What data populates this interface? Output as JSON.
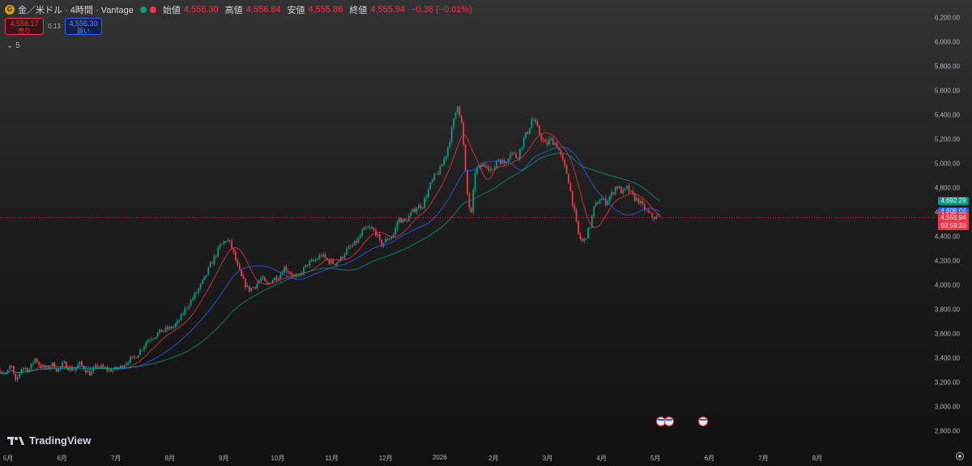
{
  "header": {
    "title": "金／米ドル · 4時間 · Vantage",
    "logo_letter": "G",
    "status_dots": [
      "#089981",
      "#f23645"
    ],
    "ohlc": [
      {
        "key": "始値",
        "value": "4,556.30"
      },
      {
        "key": "高値",
        "value": "4,556.84"
      },
      {
        "key": "安値",
        "value": "4,555.86"
      },
      {
        "key": "終値",
        "value": "4,555.94"
      }
    ],
    "change": "−0.36 (−0.01%)"
  },
  "trade": {
    "sell_price": "4,556.17",
    "sell_label": "売り",
    "spread": "0.13",
    "buy_price": "4,556.30",
    "buy_label": "買い"
  },
  "indicator_toggle": "⌄ 5",
  "price_axis": {
    "ticks": [
      "6,200.00",
      "6,000.00",
      "5,800.00",
      "5,600.00",
      "5,400.00",
      "5,200.00",
      "5,000.00",
      "4,800.00",
      "4,600.00",
      "4,400.00",
      "4,200.00",
      "4,000.00",
      "3,800.00",
      "3,600.00",
      "3,400.00",
      "3,200.00",
      "3,000.00",
      "2,800.00"
    ],
    "tags": [
      {
        "value": 4692.29,
        "text": "4,692.29",
        "color": "#089981"
      },
      {
        "value": 4606.04,
        "text": "4,606.04",
        "color": "#2962ff"
      },
      {
        "value": 4575.68,
        "text": "4,575.68",
        "color": "#f23645"
      }
    ],
    "last_price": "4,555.94",
    "countdown": "03:59:33"
  },
  "time_axis": {
    "labels": [
      "5月",
      "6月",
      "7月",
      "8月",
      "9月",
      "10月",
      "11月",
      "12月",
      "2026",
      "2月",
      "3月",
      "4月",
      "5月",
      "6月",
      "7月",
      "8月"
    ]
  },
  "brand": "TradingView",
  "chart_data": {
    "type": "candlestick",
    "symbol": "金／米ドル",
    "interval": "4時間",
    "ylim": [
      2800,
      6200
    ],
    "last_price": 4555.94,
    "x": [
      "2025-05",
      "2025-06",
      "2025-07",
      "2025-08",
      "2025-09",
      "2025-10",
      "2025-11",
      "2025-12",
      "2026-01",
      "2026-02",
      "2026-03",
      "2026-04",
      "2026-05"
    ],
    "price_path": [
      [
        0,
        3300
      ],
      [
        0.03,
        3270
      ],
      [
        0.05,
        3350
      ],
      [
        0.07,
        3200
      ],
      [
        0.1,
        3330
      ],
      [
        0.13,
        3300
      ],
      [
        0.16,
        3400
      ],
      [
        0.18,
        3340
      ],
      [
        0.21,
        3310
      ],
      [
        0.24,
        3350
      ],
      [
        0.26,
        3300
      ],
      [
        0.29,
        3360
      ],
      [
        0.31,
        3320
      ],
      [
        0.34,
        3300
      ],
      [
        0.36,
        3360
      ],
      [
        0.39,
        3300
      ],
      [
        0.41,
        3270
      ],
      [
        0.44,
        3340
      ],
      [
        0.47,
        3320
      ],
      [
        0.5,
        3300
      ],
      [
        0.53,
        3310
      ],
      [
        0.56,
        3340
      ],
      [
        0.58,
        3380
      ],
      [
        0.61,
        3400
      ],
      [
        0.64,
        3470
      ],
      [
        0.67,
        3550
      ],
      [
        0.7,
        3580
      ],
      [
        0.73,
        3620
      ],
      [
        0.76,
        3640
      ],
      [
        0.79,
        3660
      ],
      [
        0.81,
        3700
      ],
      [
        0.84,
        3800
      ],
      [
        0.87,
        3880
      ],
      [
        0.9,
        3960
      ],
      [
        0.93,
        4060
      ],
      [
        0.96,
        4180
      ],
      [
        0.98,
        4250
      ],
      [
        1.0,
        4320
      ],
      [
        1.03,
        4380
      ],
      [
        1.05,
        4330
      ],
      [
        1.08,
        4150
      ],
      [
        1.1,
        4050
      ],
      [
        1.13,
        3960
      ],
      [
        1.16,
        4000
      ],
      [
        1.19,
        4060
      ],
      [
        1.21,
        4000
      ],
      [
        1.24,
        4050
      ],
      [
        1.27,
        4080
      ],
      [
        1.29,
        4150
      ],
      [
        1.32,
        4100
      ],
      [
        1.35,
        4050
      ],
      [
        1.38,
        4130
      ],
      [
        1.4,
        4180
      ],
      [
        1.43,
        4200
      ],
      [
        1.46,
        4250
      ],
      [
        1.49,
        4200
      ],
      [
        1.52,
        4180
      ],
      [
        1.55,
        4220
      ],
      [
        1.57,
        4280
      ],
      [
        1.6,
        4320
      ],
      [
        1.63,
        4380
      ],
      [
        1.65,
        4450
      ],
      [
        1.68,
        4470
      ],
      [
        1.71,
        4430
      ],
      [
        1.73,
        4330
      ],
      [
        1.76,
        4380
      ],
      [
        1.79,
        4420
      ],
      [
        1.81,
        4550
      ],
      [
        1.84,
        4520
      ],
      [
        1.87,
        4590
      ],
      [
        1.89,
        4640
      ],
      [
        1.92,
        4660
      ],
      [
        1.95,
        4800
      ],
      [
        1.97,
        4880
      ],
      [
        2.0,
        4950
      ],
      [
        2.03,
        5100
      ],
      [
        2.05,
        5250
      ],
      [
        2.08,
        5500
      ],
      [
        2.1,
        5300
      ],
      [
        2.12,
        4800
      ],
      [
        2.14,
        4550
      ],
      [
        2.16,
        4950
      ],
      [
        2.19,
        4980
      ],
      [
        2.21,
        5000
      ],
      [
        2.24,
        4930
      ],
      [
        2.26,
        5050
      ],
      [
        2.29,
        5000
      ],
      [
        2.32,
        5100
      ],
      [
        2.35,
        5050
      ],
      [
        2.38,
        5200
      ],
      [
        2.4,
        5270
      ],
      [
        2.42,
        5380
      ],
      [
        2.45,
        5250
      ],
      [
        2.48,
        5150
      ],
      [
        2.5,
        5200
      ],
      [
        2.53,
        5160
      ],
      [
        2.55,
        5050
      ],
      [
        2.58,
        4900
      ],
      [
        2.6,
        4700
      ],
      [
        2.63,
        4400
      ],
      [
        2.65,
        4350
      ],
      [
        2.68,
        4480
      ],
      [
        2.7,
        4640
      ],
      [
        2.73,
        4720
      ],
      [
        2.75,
        4680
      ],
      [
        2.78,
        4750
      ],
      [
        2.8,
        4820
      ],
      [
        2.83,
        4760
      ],
      [
        2.85,
        4800
      ],
      [
        2.88,
        4720
      ],
      [
        2.9,
        4700
      ],
      [
        2.92,
        4650
      ],
      [
        2.95,
        4580
      ],
      [
        2.97,
        4560
      ],
      [
        3.0,
        4555.94
      ]
    ]
  }
}
